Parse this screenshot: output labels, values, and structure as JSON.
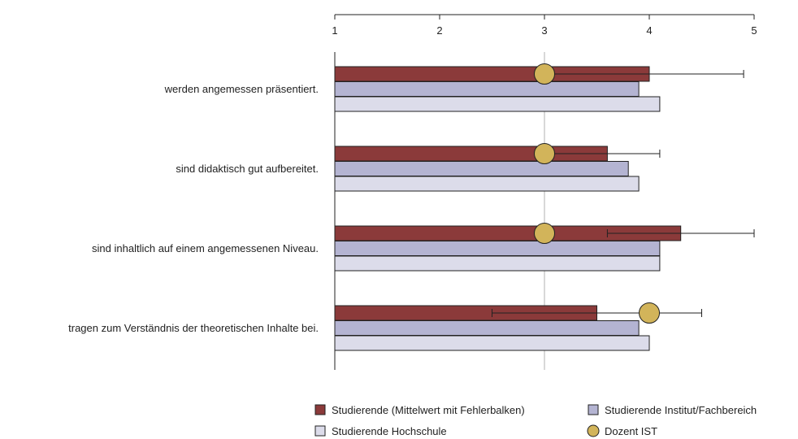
{
  "chart_data": {
    "type": "bar",
    "orientation": "horizontal",
    "title": "",
    "xlabel": "",
    "ylabel": "",
    "xlim": [
      1,
      5
    ],
    "ticks": [
      "1",
      "2",
      "3",
      "4",
      "5"
    ],
    "reference_line": 3,
    "categories": [
      "werden angemessen präsentiert.",
      "sind didaktisch gut aufbereitet.",
      "sind inhaltlich auf einem angemessenen Niveau.",
      "tragen zum Verständnis der theoretischen Inhalte bei."
    ],
    "series": [
      {
        "name": "Studierende (Mittelwert mit Fehlerbalken)",
        "color": "#8b3a3a",
        "values": [
          4.0,
          3.6,
          4.3,
          3.5
        ],
        "error_low": [
          3.0,
          3.0,
          3.6,
          2.5
        ],
        "error_high": [
          4.9,
          4.1,
          5.0,
          4.5
        ]
      },
      {
        "name": "Studierende Institut/Fachbereich",
        "color": "#b4b4d2",
        "values": [
          3.9,
          3.8,
          4.1,
          3.9
        ]
      },
      {
        "name": "Studierende Hochschule",
        "color": "#dcdcea",
        "values": [
          4.1,
          3.9,
          4.1,
          4.0
        ]
      }
    ],
    "markers": {
      "name": "Dozent IST",
      "color": "#d2b45a",
      "values": [
        3.0,
        3.0,
        3.0,
        4.0
      ]
    },
    "legend_position": "bottom-right"
  }
}
